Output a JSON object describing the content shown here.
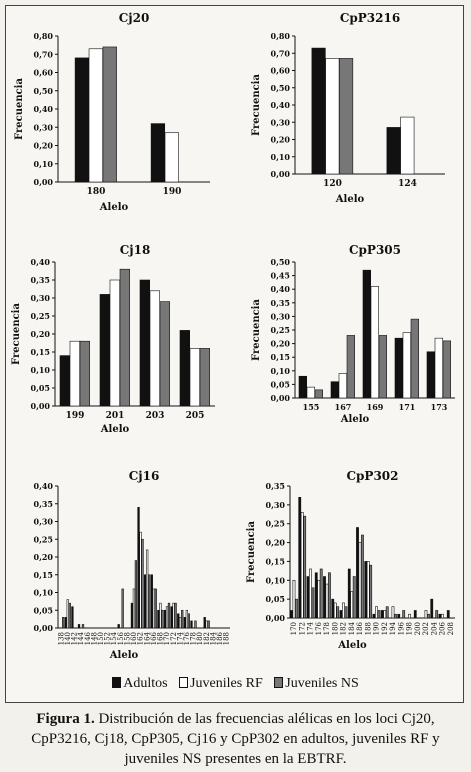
{
  "legend": {
    "adultos": "Adultos",
    "juveniles_rf": "Juveniles RF",
    "juveniles_ns": "Juveniles NS"
  },
  "caption": {
    "label": "Figura 1.",
    "text": "Distribución de las frecuencias alélicas en los loci Cj20, CpP3216, Cj18, CpP305, Cj16 y CpP302 en adultos, juveniles RF y juveniles NS presentes en la EBTRF."
  },
  "colors": {
    "adultos": "#111111",
    "juveniles_rf": "#ffffff",
    "juveniles_ns": "#777777"
  },
  "chart_data": [
    {
      "type": "bar",
      "title": "Cj20",
      "xlabel": "Alelo",
      "ylabel": "Frecuencia",
      "ylim": [
        0,
        0.8
      ],
      "yticks": [
        "0,00",
        "0,10",
        "0,20",
        "0,30",
        "0,40",
        "0,50",
        "0,60",
        "0,70",
        "0,80"
      ],
      "categories": [
        "180",
        "190"
      ],
      "series": [
        {
          "name": "Adultos",
          "values": [
            0.68,
            0.32
          ]
        },
        {
          "name": "Juveniles RF",
          "values": [
            0.73,
            0.27
          ]
        },
        {
          "name": "Juveniles NS",
          "values": [
            0.74,
            null
          ]
        }
      ]
    },
    {
      "type": "bar",
      "title": "CpP3216",
      "xlabel": "Alelo",
      "ylabel": "Frecuencia",
      "ylim": [
        0,
        0.8
      ],
      "yticks": [
        "0,00",
        "0,10",
        "0,20",
        "0,30",
        "0,40",
        "0,50",
        "0,60",
        "0,70",
        "0,80"
      ],
      "categories": [
        "120",
        "124"
      ],
      "series": [
        {
          "name": "Adultos",
          "values": [
            0.73,
            0.27
          ]
        },
        {
          "name": "Juveniles RF",
          "values": [
            0.67,
            0.33
          ]
        },
        {
          "name": "Juveniles NS",
          "values": [
            0.67,
            null
          ]
        }
      ]
    },
    {
      "type": "bar",
      "title": "Cj18",
      "xlabel": "Alelo",
      "ylabel": "Frecuencia",
      "ylim": [
        0,
        0.4
      ],
      "yticks": [
        "0,00",
        "0,05",
        "0,10",
        "0,15",
        "0,20",
        "0,25",
        "0,30",
        "0,35",
        "0,40"
      ],
      "categories": [
        "199",
        "201",
        "203",
        "205"
      ],
      "series": [
        {
          "name": "Adultos",
          "values": [
            0.14,
            0.31,
            0.35,
            0.21
          ]
        },
        {
          "name": "Juveniles RF",
          "values": [
            0.18,
            0.35,
            0.32,
            0.16
          ]
        },
        {
          "name": "Juveniles NS",
          "values": [
            0.18,
            0.38,
            0.29,
            0.16
          ]
        }
      ]
    },
    {
      "type": "bar",
      "title": "CpP305",
      "xlabel": "Alelo",
      "ylabel": "Frecuencia",
      "ylim": [
        0,
        0.5
      ],
      "yticks": [
        "0,00",
        "0,05",
        "0,10",
        "0,15",
        "0,20",
        "0,25",
        "0,30",
        "0,35",
        "0,40",
        "0,45",
        "0,50"
      ],
      "categories": [
        "155",
        "167",
        "169",
        "171",
        "173"
      ],
      "series": [
        {
          "name": "Adultos",
          "values": [
            0.08,
            0.06,
            0.47,
            0.22,
            0.17
          ]
        },
        {
          "name": "Juveniles RF",
          "values": [
            0.04,
            0.09,
            0.41,
            0.24,
            0.22
          ]
        },
        {
          "name": "Juveniles NS",
          "values": [
            0.03,
            0.23,
            0.23,
            0.29,
            0.21
          ]
        }
      ]
    },
    {
      "type": "bar",
      "title": "Cj16",
      "xlabel": "Alelo",
      "ylabel": "",
      "ylim": [
        0,
        0.4
      ],
      "yticks": [
        "0,00",
        "0,05",
        "0,10",
        "0,15",
        "0,20",
        "0,25",
        "0,30",
        "0,35",
        "0,40"
      ],
      "categories": [
        "138",
        "140",
        "142",
        "144",
        "146",
        "148",
        "150",
        "152",
        "154",
        "156",
        "158",
        "160",
        "162",
        "164",
        "166",
        "168",
        "170",
        "172",
        "174",
        "176",
        "178",
        "180",
        "182",
        "184",
        "186",
        "188"
      ],
      "series": [
        {
          "name": "Adultos",
          "values": [
            0,
            0.03,
            0.06,
            0.01,
            0,
            0,
            0,
            0,
            0,
            0.01,
            0,
            0.07,
            0.34,
            0.15,
            0.15,
            0.05,
            0.05,
            0.06,
            0.04,
            0.03,
            0.02,
            0,
            0.03,
            0,
            0,
            0
          ]
        },
        {
          "name": "Juveniles RF",
          "values": [
            0,
            0.08,
            0,
            0,
            0,
            0,
            0,
            0,
            0,
            0,
            0,
            0.11,
            0.27,
            0.22,
            0.11,
            0.07,
            0.06,
            0.07,
            0.03,
            0.05,
            0,
            0,
            0.02,
            0,
            0,
            0
          ]
        },
        {
          "name": "Juveniles NS",
          "values": [
            0.03,
            0.07,
            0,
            0.01,
            0,
            0,
            0,
            0,
            0,
            0.11,
            0,
            0.19,
            0.25,
            0.15,
            0.11,
            0.05,
            0.07,
            0.07,
            0.05,
            0.04,
            0.02,
            0,
            0.02,
            0,
            0,
            0
          ]
        }
      ]
    },
    {
      "type": "bar",
      "title": "CpP302",
      "xlabel": "Alelo",
      "ylabel": "Frecuencia",
      "ylim": [
        0,
        0.35
      ],
      "yticks": [
        "0,00",
        "0,05",
        "0,10",
        "0,15",
        "0,20",
        "0,25",
        "0,30",
        "0,35"
      ],
      "categories": [
        "170",
        "172",
        "174",
        "176",
        "178",
        "180",
        "182",
        "184",
        "186",
        "188",
        "190",
        "192",
        "194",
        "196",
        "198",
        "200",
        "202",
        "204",
        "206",
        "208"
      ],
      "series": [
        {
          "name": "Adultos",
          "values": [
            0.02,
            0.32,
            0.11,
            0.12,
            0.11,
            0.05,
            0.02,
            0.13,
            0.24,
            0.15,
            0.01,
            0.02,
            0,
            0.01,
            0,
            0.02,
            0,
            0.05,
            0.01,
            0.02
          ]
        },
        {
          "name": "Juveniles RF",
          "values": [
            0.1,
            0.28,
            0.13,
            0.1,
            0.09,
            0.04,
            0.04,
            0.07,
            0.2,
            0.15,
            0.03,
            0.02,
            0.03,
            0,
            0.01,
            0,
            0.02,
            0,
            0.01,
            0
          ]
        },
        {
          "name": "Juveniles NS",
          "values": [
            0.05,
            0.27,
            0.08,
            0.13,
            0.12,
            0.03,
            0.03,
            0.11,
            0.22,
            0.14,
            0.02,
            0.03,
            0.01,
            0.02,
            0,
            0,
            0.01,
            0.02,
            0,
            0
          ]
        }
      ]
    }
  ]
}
